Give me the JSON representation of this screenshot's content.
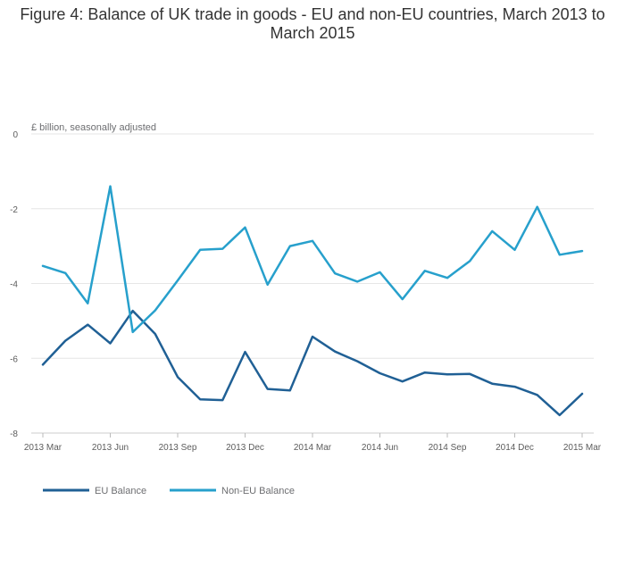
{
  "chart_data": {
    "type": "line",
    "title": "Figure 4: Balance of UK trade in goods - EU and non-EU countries, March 2013 to March 2015",
    "unit_label": "£ billion, seasonally adjusted",
    "x": [
      "2013 Mar",
      "2013 Apr",
      "2013 May",
      "2013 Jun",
      "2013 Jul",
      "2013 Aug",
      "2013 Sep",
      "2013 Oct",
      "2013 Nov",
      "2013 Dec",
      "2014 Jan",
      "2014 Feb",
      "2014 Mar",
      "2014 Apr",
      "2014 May",
      "2014 Jun",
      "2014 Jul",
      "2014 Aug",
      "2014 Sep",
      "2014 Oct",
      "2014 Nov",
      "2014 Dec",
      "2015 Jan",
      "2015 Feb",
      "2015 Mar"
    ],
    "x_tick_labels": [
      "2013 Mar",
      "2013 Jun",
      "2013 Sep",
      "2013 Dec",
      "2014 Mar",
      "2014 Jun",
      "2014 Sep",
      "2014 Dec",
      "2015 Mar"
    ],
    "y_ticks": [
      0,
      -2,
      -4,
      -6,
      -8
    ],
    "ylim": [
      -8,
      0
    ],
    "grid": true,
    "legend_position": "bottom-left",
    "series": [
      {
        "name": "EU Balance",
        "color": "#206095",
        "values": [
          -6.17,
          -5.53,
          -5.1,
          -5.6,
          -4.73,
          -5.35,
          -6.5,
          -7.1,
          -7.12,
          -5.83,
          -6.82,
          -6.86,
          -5.42,
          -5.82,
          -6.08,
          -6.4,
          -6.62,
          -6.38,
          -6.43,
          -6.42,
          -6.68,
          -6.76,
          -6.98,
          -7.52,
          -6.95
        ]
      },
      {
        "name": "Non-EU Balance",
        "color": "#27a0cc",
        "values": [
          -3.53,
          -3.72,
          -4.53,
          -1.4,
          -5.3,
          -4.72,
          -3.92,
          -3.1,
          -3.07,
          -2.5,
          -4.03,
          -3.0,
          -2.86,
          -3.73,
          -3.95,
          -3.7,
          -4.42,
          -3.66,
          -3.85,
          -3.4,
          -2.6,
          -3.1,
          -1.95,
          -3.23,
          -3.13
        ]
      }
    ]
  }
}
